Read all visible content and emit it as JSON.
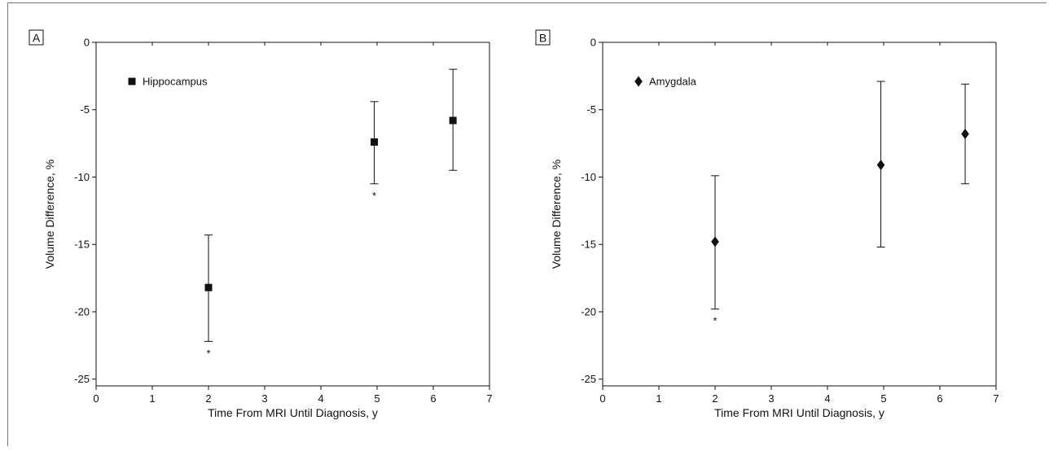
{
  "chart_data": [
    {
      "type": "scatter",
      "panel_label": "A",
      "xlabel": "Time From MRI Until Diagnosis, y",
      "ylabel": "Volume Difference, %",
      "xlim": [
        0,
        7
      ],
      "ylim": [
        -25.5,
        0
      ],
      "xticks": [
        0,
        1,
        2,
        3,
        4,
        5,
        6,
        7
      ],
      "yticks": [
        0,
        -5,
        -10,
        -15,
        -20,
        -25
      ],
      "grid": false,
      "legend_position": "top-left",
      "series": [
        {
          "name": "Hippocampus",
          "marker": "square",
          "color": "#111111",
          "points": [
            {
              "x": 2.0,
              "y": -18.2,
              "lower": -22.2,
              "upper": -14.3,
              "annotation": "*"
            },
            {
              "x": 4.95,
              "y": -7.4,
              "lower": -10.5,
              "upper": -4.4,
              "annotation": "*"
            },
            {
              "x": 6.35,
              "y": -5.8,
              "lower": -9.5,
              "upper": -2.0,
              "annotation": ""
            }
          ]
        }
      ]
    },
    {
      "type": "scatter",
      "panel_label": "B",
      "xlabel": "Time From MRI Until Diagnosis, y",
      "ylabel": "Volume Difference, %",
      "xlim": [
        0,
        7
      ],
      "ylim": [
        -25.5,
        0
      ],
      "xticks": [
        0,
        1,
        2,
        3,
        4,
        5,
        6,
        7
      ],
      "yticks": [
        0,
        -5,
        -10,
        -15,
        -20,
        -25
      ],
      "grid": false,
      "legend_position": "top-left",
      "series": [
        {
          "name": "Amygdala",
          "marker": "diamond",
          "color": "#111111",
          "points": [
            {
              "x": 2.0,
              "y": -14.8,
              "lower": -19.8,
              "upper": -9.9,
              "annotation": "*"
            },
            {
              "x": 4.95,
              "y": -9.1,
              "lower": -15.2,
              "upper": -2.9,
              "annotation": ""
            },
            {
              "x": 6.45,
              "y": -6.8,
              "lower": -10.5,
              "upper": -3.1,
              "annotation": ""
            }
          ]
        }
      ]
    }
  ]
}
